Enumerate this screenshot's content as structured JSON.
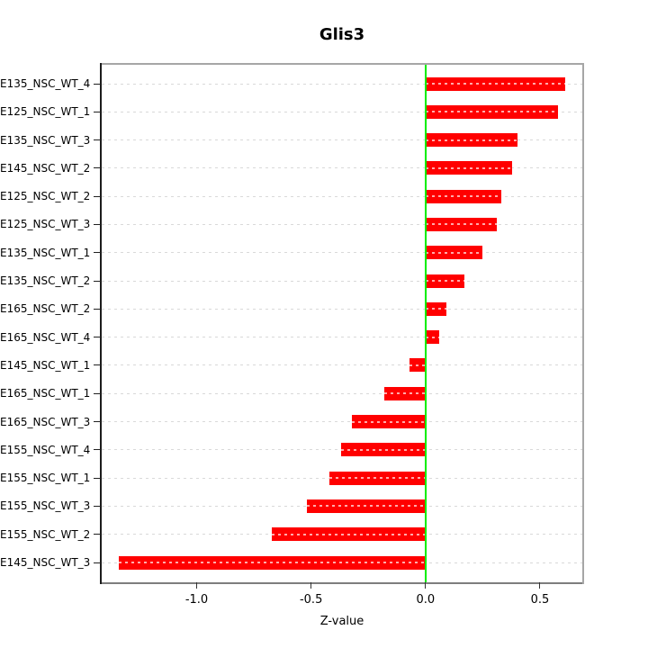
{
  "chart_data": {
    "type": "bar",
    "orientation": "horizontal",
    "title": "Glis3",
    "xlabel": "Z-value",
    "categories": [
      "E135_NSC_WT_4",
      "E125_NSC_WT_1",
      "E135_NSC_WT_3",
      "E145_NSC_WT_2",
      "E125_NSC_WT_2",
      "E125_NSC_WT_3",
      "E135_NSC_WT_1",
      "E135_NSC_WT_2",
      "E165_NSC_WT_2",
      "E165_NSC_WT_4",
      "E145_NSC_WT_1",
      "E165_NSC_WT_1",
      "E165_NSC_WT_3",
      "E155_NSC_WT_4",
      "E155_NSC_WT_1",
      "E155_NSC_WT_3",
      "E155_NSC_WT_2",
      "E145_NSC_WT_3"
    ],
    "values": [
      0.61,
      0.58,
      0.4,
      0.38,
      0.33,
      0.31,
      0.25,
      0.17,
      0.09,
      0.06,
      -0.07,
      -0.18,
      -0.32,
      -0.37,
      -0.42,
      -0.52,
      -0.67,
      -1.34
    ],
    "xlim": [
      -1.415,
      0.685
    ],
    "xticks": [
      -1.0,
      -0.5,
      0.0,
      0.5
    ],
    "xtick_labels": [
      "-1.0",
      "-0.5",
      "0.0",
      "0.5"
    ],
    "zero_line_at": 0,
    "grid": true,
    "legend": null,
    "colors": {
      "bar": "#ff0000",
      "bar_inner_dash": "#ffaaaa",
      "zero_line": "#00ee00",
      "gridline": "#d9d9d9",
      "box": "#a6a6a6",
      "axis_left": "#1c1c1c",
      "axis_bottom": "#7d7d7d",
      "text": "#000000"
    }
  }
}
